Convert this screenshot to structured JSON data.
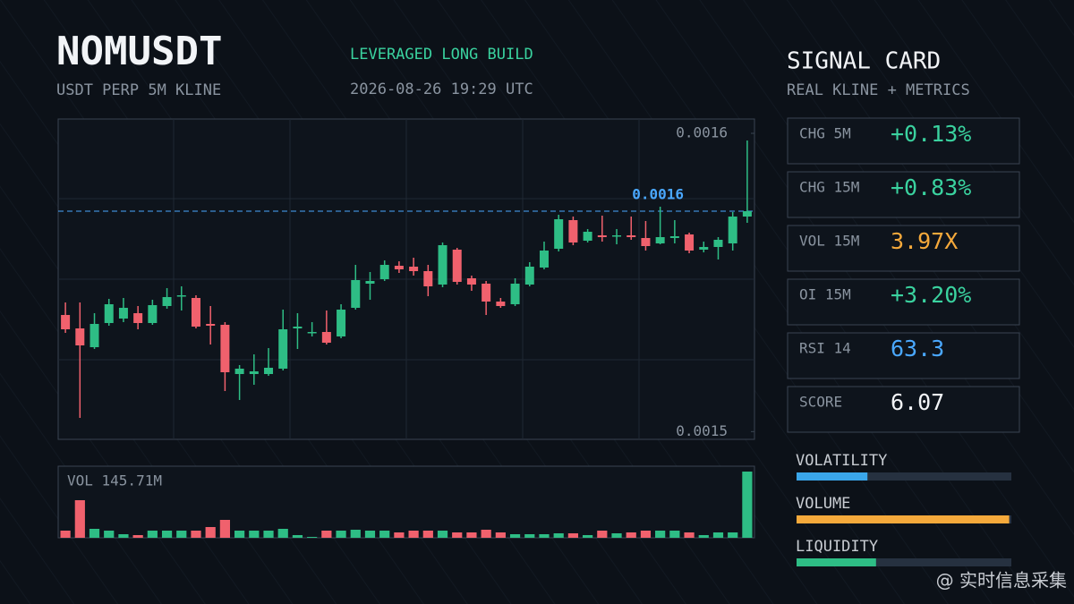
{
  "header": {
    "title": "NOMUSDT",
    "subtitle": "USDT PERP 5M KLINE",
    "tag": "LEVERAGED LONG BUILD",
    "timestamp": "2026-08-26 19:29 UTC"
  },
  "chart_data": [
    {
      "type": "candlestick",
      "up_color": "#2ebd85",
      "down_color": "#f0616d",
      "ylim": [
        0.0014974,
        0.0016048
      ],
      "yticks": [
        0.0015,
        0.0016
      ],
      "price_line": {
        "value": 0.0015739,
        "label": "0.0016",
        "color": "#4aa8ff"
      },
      "open": [
        0.0015391,
        0.0015346,
        0.0015283,
        0.0015364,
        0.0015379,
        0.0015397,
        0.0015364,
        0.0015421,
        0.0015454,
        0.0015448,
        0.0015361,
        0.0015358,
        0.0015193,
        0.0015193,
        0.0015193,
        0.0015211,
        0.0015346,
        0.0015331,
        0.0015334,
        0.0015319,
        0.0015415,
        0.0015496,
        0.0015511,
        0.0015556,
        0.0015553,
        0.0015538,
        0.0015493,
        0.001561,
        0.0015514,
        0.0015496,
        0.0015436,
        0.0015427,
        0.0015493,
        0.001555,
        0.0015613,
        0.0015709,
        0.001564,
        0.0015658,
        0.0015655,
        0.0015658,
        0.0015649,
        0.0015631,
        0.0015649,
        0.0015661,
        0.001561,
        0.0015619,
        0.0015631,
        0.0015721
      ],
      "high": [
        0.0015433,
        0.0015433,
        0.0015397,
        0.0015445,
        0.0015448,
        0.0015421,
        0.0015442,
        0.0015481,
        0.0015487,
        0.0015457,
        0.0015421,
        0.0015367,
        0.0015223,
        0.0015259,
        0.001528,
        0.0015409,
        0.0015397,
        0.0015367,
        0.0015406,
        0.0015427,
        0.0015559,
        0.0015535,
        0.0015574,
        0.0015571,
        0.0015583,
        0.0015559,
        0.0015634,
        0.0015616,
        0.0015523,
        0.0015505,
        0.0015448,
        0.0015514,
        0.0015568,
        0.0015637,
        0.0015727,
        0.0015721,
        0.0015679,
        0.0015724,
        0.0015679,
        0.0015721,
        0.0015706,
        0.0015754,
        0.0015709,
        0.0015667,
        0.0015637,
        0.0015652,
        0.0015736,
        0.0015976
      ],
      "low": [
        0.0015331,
        0.0015046,
        0.0015277,
        0.0015355,
        0.0015367,
        0.0015343,
        0.0015358,
        0.0015412,
        0.0015406,
        0.0015346,
        0.0015292,
        0.0015136,
        0.0015106,
        0.0015157,
        0.0015187,
        0.0015205,
        0.0015277,
        0.0015319,
        0.0015292,
        0.0015313,
        0.0015409,
        0.0015442,
        0.0015505,
        0.0015532,
        0.0015523,
        0.0015454,
        0.0015484,
        0.0015493,
        0.0015472,
        0.0015391,
        0.0015415,
        0.0015421,
        0.0015487,
        0.0015544,
        0.0015604,
        0.0015625,
        0.0015634,
        0.0015637,
        0.0015628,
        0.0015643,
        0.0015607,
        0.0015628,
        0.0015631,
        0.0015598,
        0.0015601,
        0.0015577,
        0.0015607,
        0.00157
      ],
      "close": [
        0.0015343,
        0.0015289,
        0.0015361,
        0.0015427,
        0.0015415,
        0.0015364,
        0.0015424,
        0.0015451,
        0.0015457,
        0.0015352,
        0.0015355,
        0.0015199,
        0.0015211,
        0.0015202,
        0.0015214,
        0.0015343,
        0.0015352,
        0.0015334,
        0.0015298,
        0.0015409,
        0.0015508,
        0.0015505,
        0.0015559,
        0.0015544,
        0.0015538,
        0.0015487,
        0.0015625,
        0.0015502,
        0.0015493,
        0.0015436,
        0.0015421,
        0.0015496,
        0.0015553,
        0.0015607,
        0.0015712,
        0.0015634,
        0.001567,
        0.0015652,
        0.0015658,
        0.0015652,
        0.0015622,
        0.0015652,
        0.0015655,
        0.0015607,
        0.0015619,
        0.0015643,
        0.0015721,
        0.0015739
      ]
    },
    {
      "type": "bar",
      "label": "VOL 145.71M",
      "ylim": [
        0,
        32
      ],
      "values": [
        3.2,
        16.8,
        4,
        3.2,
        1.6,
        1.2,
        3.2,
        3.2,
        3.2,
        3.2,
        4.8,
        8,
        3.2,
        3.2,
        3.2,
        4,
        1.2,
        0.4,
        3.2,
        3.2,
        3.6,
        3.2,
        3.2,
        2.4,
        3.2,
        3.2,
        3.2,
        2.4,
        2.4,
        3.6,
        2.4,
        1.6,
        1.6,
        1.6,
        2,
        2,
        1.2,
        3.2,
        2,
        2.4,
        3.2,
        3.2,
        3.2,
        2.4,
        1.2,
        2.4,
        2.4,
        29.6
      ]
    }
  ],
  "signal_card": {
    "title": "SIGNAL CARD",
    "subtitle": "REAL KLINE + METRICS",
    "cards": [
      {
        "label": "CHG 5M",
        "value": "+0.13%",
        "color": "#3ad29f"
      },
      {
        "label": "CHG 15M",
        "value": "+0.83%",
        "color": "#3ad29f"
      },
      {
        "label": "VOL 15M",
        "value": "3.97X",
        "color": "#f5a93b"
      },
      {
        "label": "OI 15M",
        "value": "+3.20%",
        "color": "#3ad29f"
      },
      {
        "label": "RSI 14",
        "value": "63.3",
        "color": "#4aa8ff"
      },
      {
        "label": "SCORE",
        "value": "6.07",
        "color": "#f2f4f7"
      }
    ],
    "meter_range": [
      0,
      100
    ],
    "meters": [
      {
        "label": "VOLATILITY",
        "value": 33,
        "color": "#3aa6ea"
      },
      {
        "label": "VOLUME",
        "value": 99,
        "color": "#f5a93b"
      },
      {
        "label": "LIQUIDITY",
        "value": 37,
        "color": "#2ebd85"
      }
    ]
  },
  "watermark": "@ 实时信息采集"
}
